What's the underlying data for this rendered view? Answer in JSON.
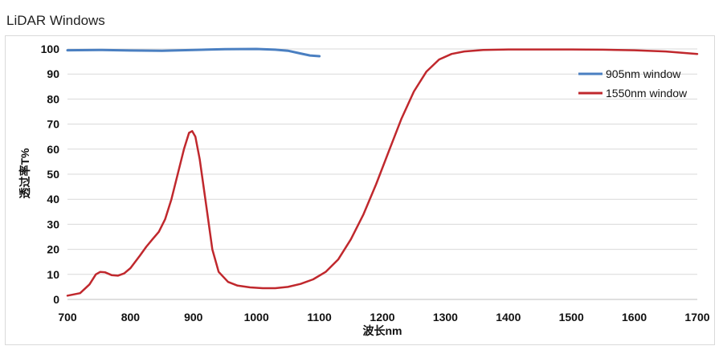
{
  "page": {
    "title": "LiDAR Windows"
  },
  "chart_data": {
    "type": "line",
    "title": "LiDAR Windows",
    "xlabel": "波长nm",
    "ylabel": "透过率T%",
    "xlim": [
      700,
      1700
    ],
    "ylim": [
      0,
      100
    ],
    "xticks": [
      700,
      800,
      900,
      1000,
      1100,
      1200,
      1300,
      1400,
      1500,
      1600,
      1700
    ],
    "yticks": [
      0,
      10,
      20,
      30,
      40,
      50,
      60,
      70,
      80,
      90,
      100
    ],
    "grid": "horizontal",
    "legend_position": "top-right",
    "series": [
      {
        "name": "905nm window",
        "color": "#4a7fc1",
        "points": [
          [
            700,
            99.5
          ],
          [
            750,
            99.6
          ],
          [
            800,
            99.4
          ],
          [
            850,
            99.3
          ],
          [
            900,
            99.6
          ],
          [
            950,
            99.9
          ],
          [
            1000,
            100
          ],
          [
            1030,
            99.7
          ],
          [
            1050,
            99.3
          ],
          [
            1070,
            98.2
          ],
          [
            1085,
            97.4
          ],
          [
            1100,
            97.1
          ]
        ]
      },
      {
        "name": "1550nm window",
        "color": "#c0282d",
        "points": [
          [
            700,
            1.5
          ],
          [
            720,
            2.5
          ],
          [
            735,
            6
          ],
          [
            745,
            10
          ],
          [
            752,
            11
          ],
          [
            760,
            10.8
          ],
          [
            770,
            9.7
          ],
          [
            780,
            9.5
          ],
          [
            790,
            10.4
          ],
          [
            800,
            12.5
          ],
          [
            815,
            17.5
          ],
          [
            825,
            21
          ],
          [
            835,
            24
          ],
          [
            845,
            27
          ],
          [
            855,
            32
          ],
          [
            865,
            40
          ],
          [
            875,
            50
          ],
          [
            885,
            60
          ],
          [
            893,
            66.5
          ],
          [
            898,
            67.2
          ],
          [
            903,
            65
          ],
          [
            910,
            56
          ],
          [
            920,
            38
          ],
          [
            930,
            20
          ],
          [
            940,
            11
          ],
          [
            955,
            7
          ],
          [
            970,
            5.5
          ],
          [
            990,
            4.8
          ],
          [
            1010,
            4.5
          ],
          [
            1030,
            4.5
          ],
          [
            1050,
            5
          ],
          [
            1070,
            6.2
          ],
          [
            1090,
            8
          ],
          [
            1110,
            11
          ],
          [
            1130,
            16
          ],
          [
            1150,
            24
          ],
          [
            1170,
            34
          ],
          [
            1190,
            46
          ],
          [
            1210,
            59
          ],
          [
            1230,
            72
          ],
          [
            1250,
            83
          ],
          [
            1270,
            91
          ],
          [
            1290,
            95.8
          ],
          [
            1310,
            98
          ],
          [
            1330,
            99
          ],
          [
            1360,
            99.6
          ],
          [
            1400,
            99.8
          ],
          [
            1500,
            99.8
          ],
          [
            1550,
            99.7
          ],
          [
            1600,
            99.5
          ],
          [
            1650,
            99
          ],
          [
            1700,
            98
          ]
        ]
      }
    ]
  }
}
